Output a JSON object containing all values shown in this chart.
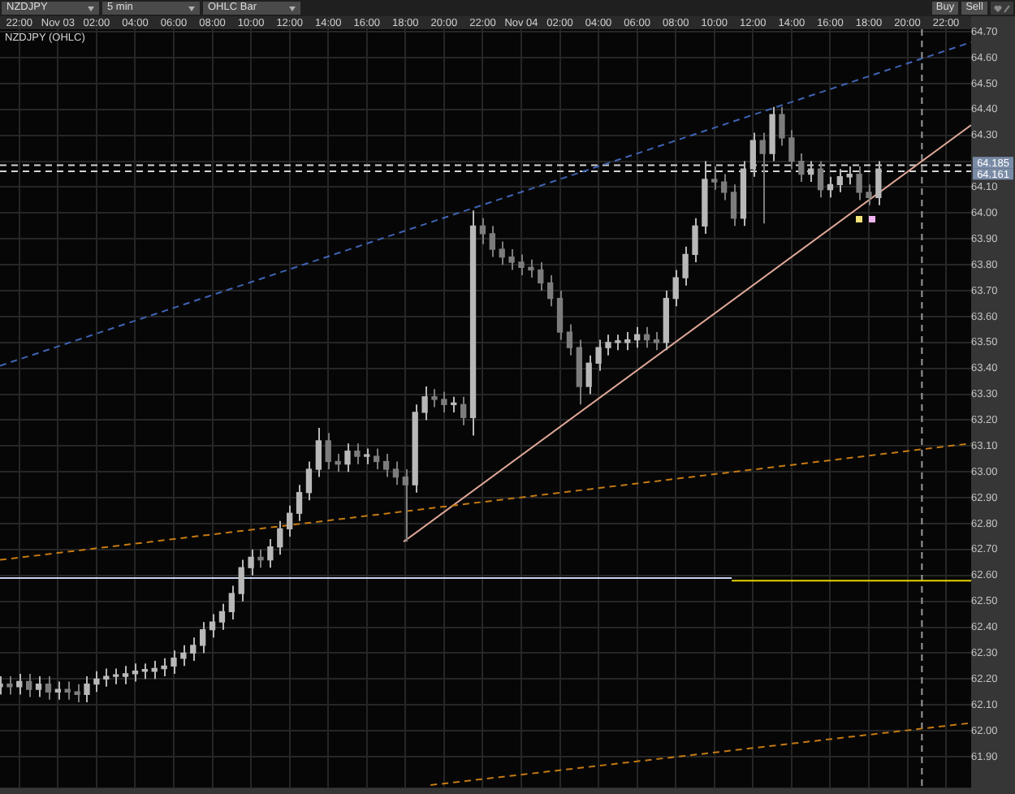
{
  "chart_data": {
    "type": "candlestick",
    "title": "NZDJPY (OHLC)",
    "annotations": [
      "NZDJPY",
      "5 min",
      "OHLC Bar",
      "Buy",
      "Sell"
    ],
    "x": [
      "--11-02T21:00",
      "--11-02T21:30",
      "--11-02T22:00",
      "--11-02T22:30",
      "--11-02T23:00",
      "--11-02T23:30",
      "--11-03T00:00",
      "--11-03T00:30",
      "--11-03T01:00",
      "--11-03T01:30",
      "--11-03T02:00",
      "--11-03T02:30",
      "--11-03T03:00",
      "--11-03T03:30",
      "--11-03T04:00",
      "--11-03T04:30",
      "--11-03T05:00",
      "--11-03T05:30",
      "--11-03T06:00",
      "--11-03T06:30",
      "--11-03T07:00",
      "--11-03T07:30",
      "--11-03T08:00",
      "--11-03T08:30",
      "--11-03T09:00",
      "--11-03T09:30",
      "--11-03T10:00",
      "--11-03T10:30",
      "--11-03T11:00",
      "--11-03T11:30",
      "--11-03T12:00",
      "--11-03T12:30",
      "--11-03T13:00",
      "--11-03T13:30",
      "--11-03T14:00",
      "--11-03T14:30",
      "--11-03T15:00",
      "--11-03T15:30",
      "--11-03T16:00",
      "--11-03T16:30",
      "--11-03T17:00",
      "--11-03T17:30",
      "--11-03T18:00",
      "--11-03T18:30",
      "--11-03T19:00",
      "--11-03T19:30",
      "--11-03T20:00",
      "--11-03T20:30",
      "--11-03T21:00",
      "--11-03T21:30",
      "--11-03T22:00",
      "--11-03T22:30",
      "--11-03T23:00",
      "--11-03T23:30",
      "--11-04T00:00",
      "--11-04T00:30",
      "--11-04T01:00",
      "--11-04T01:30",
      "--11-04T02:00",
      "--11-04T02:30",
      "--11-04T03:00",
      "--11-04T03:30",
      "--11-04T04:00",
      "--11-04T04:30",
      "--11-04T05:00",
      "--11-04T05:30",
      "--11-04T06:00",
      "--11-04T06:30",
      "--11-04T07:00",
      "--11-04T07:30",
      "--11-04T08:00",
      "--11-04T08:30",
      "--11-04T09:00",
      "--11-04T09:30",
      "--11-04T10:00",
      "--11-04T10:30",
      "--11-04T11:00",
      "--11-04T11:30",
      "--11-04T12:00",
      "--11-04T12:30",
      "--11-04T13:00",
      "--11-04T13:30",
      "--11-04T14:00",
      "--11-04T14:30",
      "--11-04T15:00",
      "--11-04T15:30",
      "--11-04T16:00",
      "--11-04T16:30",
      "--11-04T17:00",
      "--11-04T17:30",
      "--11-04T18:00",
      "--11-04T18:30"
    ],
    "ohlc": [
      [
        62.17,
        62.21,
        62.14,
        62.18
      ],
      [
        62.18,
        62.21,
        62.14,
        62.17
      ],
      [
        62.17,
        62.22,
        62.14,
        62.19
      ],
      [
        62.19,
        62.22,
        62.13,
        62.16
      ],
      [
        62.16,
        62.21,
        62.13,
        62.18
      ],
      [
        62.18,
        62.21,
        62.12,
        62.15
      ],
      [
        62.15,
        62.19,
        62.12,
        62.16
      ],
      [
        62.16,
        62.19,
        62.12,
        62.15
      ],
      [
        62.15,
        62.18,
        62.11,
        62.14
      ],
      [
        62.14,
        62.21,
        62.11,
        62.18
      ],
      [
        62.18,
        62.23,
        62.15,
        62.2
      ],
      [
        62.2,
        62.24,
        62.17,
        62.21
      ],
      [
        62.21,
        62.24,
        62.18,
        62.21
      ],
      [
        62.21,
        62.25,
        62.18,
        62.22
      ],
      [
        62.22,
        62.26,
        62.19,
        62.23
      ],
      [
        62.23,
        62.26,
        62.2,
        62.23
      ],
      [
        62.23,
        62.27,
        62.2,
        62.24
      ],
      [
        62.24,
        62.28,
        62.21,
        62.25
      ],
      [
        62.25,
        62.31,
        62.22,
        62.28
      ],
      [
        62.28,
        62.33,
        62.25,
        62.3
      ],
      [
        62.3,
        62.36,
        62.27,
        62.33
      ],
      [
        62.33,
        62.42,
        62.3,
        62.39
      ],
      [
        62.39,
        62.45,
        62.36,
        62.42
      ],
      [
        62.42,
        62.49,
        62.39,
        62.46
      ],
      [
        62.46,
        62.56,
        62.43,
        62.53
      ],
      [
        62.53,
        62.66,
        62.5,
        62.63
      ],
      [
        62.63,
        62.7,
        62.6,
        62.67
      ],
      [
        62.67,
        62.7,
        62.63,
        62.66
      ],
      [
        62.66,
        62.74,
        62.63,
        62.71
      ],
      [
        62.71,
        62.81,
        62.68,
        62.78
      ],
      [
        62.78,
        62.87,
        62.75,
        62.84
      ],
      [
        62.84,
        62.95,
        62.81,
        62.92
      ],
      [
        62.92,
        63.04,
        62.89,
        63.01
      ],
      [
        63.01,
        63.17,
        62.98,
        63.12
      ],
      [
        63.12,
        63.15,
        63.01,
        63.04
      ],
      [
        63.04,
        63.07,
        63.0,
        63.03
      ],
      [
        63.03,
        63.11,
        63.0,
        63.08
      ],
      [
        63.08,
        63.11,
        63.03,
        63.06
      ],
      [
        63.06,
        63.09,
        63.03,
        63.06
      ],
      [
        63.06,
        63.09,
        63.01,
        63.04
      ],
      [
        63.04,
        63.07,
        62.98,
        63.01
      ],
      [
        63.01,
        63.04,
        62.95,
        62.98
      ],
      [
        62.98,
        63.01,
        62.73,
        62.95
      ],
      [
        62.95,
        63.26,
        62.92,
        63.23
      ],
      [
        63.23,
        63.33,
        63.2,
        63.29
      ],
      [
        63.29,
        63.32,
        63.25,
        63.28
      ],
      [
        63.28,
        63.31,
        63.23,
        63.26
      ],
      [
        63.26,
        63.29,
        63.23,
        63.26
      ],
      [
        63.26,
        63.29,
        63.18,
        63.21
      ],
      [
        63.21,
        64.01,
        63.14,
        63.95
      ],
      [
        63.95,
        63.98,
        63.88,
        63.92
      ],
      [
        63.92,
        63.95,
        63.83,
        63.86
      ],
      [
        63.86,
        63.89,
        63.8,
        63.83
      ],
      [
        63.83,
        63.86,
        63.78,
        63.81
      ],
      [
        63.81,
        63.84,
        63.76,
        63.79
      ],
      [
        63.79,
        63.82,
        63.75,
        63.78
      ],
      [
        63.78,
        63.81,
        63.7,
        63.73
      ],
      [
        63.73,
        63.76,
        63.64,
        63.67
      ],
      [
        63.67,
        63.7,
        63.51,
        63.54
      ],
      [
        63.54,
        63.57,
        63.45,
        63.48
      ],
      [
        63.48,
        63.51,
        63.26,
        63.33
      ],
      [
        63.33,
        63.45,
        63.3,
        63.42
      ],
      [
        63.42,
        63.51,
        63.39,
        63.48
      ],
      [
        63.48,
        63.53,
        63.45,
        63.5
      ],
      [
        63.5,
        63.53,
        63.47,
        63.5
      ],
      [
        63.5,
        63.54,
        63.47,
        63.51
      ],
      [
        63.51,
        63.56,
        63.48,
        63.53
      ],
      [
        63.53,
        63.56,
        63.48,
        63.51
      ],
      [
        63.51,
        63.54,
        63.47,
        63.5
      ],
      [
        63.5,
        63.7,
        63.47,
        63.67
      ],
      [
        63.67,
        63.78,
        63.64,
        63.75
      ],
      [
        63.75,
        63.87,
        63.72,
        63.84
      ],
      [
        63.84,
        63.98,
        63.81,
        63.95
      ],
      [
        63.95,
        64.2,
        63.92,
        64.13
      ],
      [
        64.13,
        64.18,
        64.09,
        64.12
      ],
      [
        64.12,
        64.15,
        64.05,
        64.08
      ],
      [
        64.08,
        64.11,
        63.95,
        63.98
      ],
      [
        63.98,
        64.2,
        63.95,
        64.17
      ],
      [
        64.17,
        64.31,
        64.14,
        64.28
      ],
      [
        64.28,
        64.31,
        63.96,
        64.23
      ],
      [
        64.23,
        64.41,
        64.2,
        64.38
      ],
      [
        64.38,
        64.41,
        64.26,
        64.29
      ],
      [
        64.29,
        64.32,
        64.17,
        64.2
      ],
      [
        64.2,
        64.23,
        64.12,
        64.15
      ],
      [
        64.15,
        64.2,
        64.12,
        64.17
      ],
      [
        64.17,
        64.2,
        64.06,
        64.09
      ],
      [
        64.09,
        64.14,
        64.06,
        64.11
      ],
      [
        64.11,
        64.17,
        64.08,
        64.14
      ],
      [
        64.14,
        64.18,
        64.11,
        64.15
      ],
      [
        64.15,
        64.18,
        64.05,
        64.08
      ],
      [
        64.08,
        64.11,
        64.03,
        64.06
      ],
      [
        64.06,
        64.2,
        64.03,
        64.17
      ]
    ],
    "colors": [
      "#b8b8b8",
      "#7c7c7c",
      "#b8b8b8",
      "#7c7c7c",
      "#b8b8b8",
      "#7c7c7c",
      "#b8b8b8",
      "#7c7c7c",
      "#7c7c7c",
      "#b8b8b8",
      "#b8b8b8",
      "#b8b8b8",
      "#b8b8b8",
      "#b8b8b8",
      "#b8b8b8",
      "#b8b8b8",
      "#b8b8b8",
      "#b8b8b8",
      "#b8b8b8",
      "#b8b8b8",
      "#b8b8b8",
      "#b8b8b8",
      "#b8b8b8",
      "#b8b8b8",
      "#b8b8b8",
      "#b8b8b8",
      "#b8b8b8",
      "#7c7c7c",
      "#b8b8b8",
      "#b8b8b8",
      "#b8b8b8",
      "#b8b8b8",
      "#b8b8b8",
      "#b8b8b8",
      "#7c7c7c",
      "#7c7c7c",
      "#b8b8b8",
      "#7c7c7c",
      "#b8b8b8",
      "#7c7c7c",
      "#7c7c7c",
      "#7c7c7c",
      "#7c7c7c",
      "#b8b8b8",
      "#b8b8b8",
      "#7c7c7c",
      "#7c7c7c",
      "#b8b8b8",
      "#7c7c7c",
      "#b8b8b8",
      "#7c7c7c",
      "#7c7c7c",
      "#7c7c7c",
      "#7c7c7c",
      "#7c7c7c",
      "#7c7c7c",
      "#7c7c7c",
      "#7c7c7c",
      "#7c7c7c",
      "#7c7c7c",
      "#7c7c7c",
      "#b8b8b8",
      "#b8b8b8",
      "#b8b8b8",
      "#b8b8b8",
      "#b8b8b8",
      "#b8b8b8",
      "#7c7c7c",
      "#7c7c7c",
      "#b8b8b8",
      "#b8b8b8",
      "#b8b8b8",
      "#b8b8b8",
      "#b8b8b8",
      "#7c7c7c",
      "#7c7c7c",
      "#7c7c7c",
      "#b8b8b8",
      "#b8b8b8",
      "#7c7c7c",
      "#b8b8b8",
      "#7c7c7c",
      "#7c7c7c",
      "#7c7c7c",
      "#b8b8b8",
      "#7c7c7c",
      "#b8b8b8",
      "#b8b8b8",
      "#b8b8b8",
      "#7c7c7c",
      "#7c7c7c",
      "#b8b8b8"
    ],
    "series": [
      {
        "type": "line",
        "x": [
          "--11-02T21:00",
          "--11-04T23:18"
        ],
        "values": [
          63.41,
          64.66
        ],
        "color": "#3f64b4",
        "line_style": "dashed"
      },
      {
        "type": "line",
        "x": [
          "--11-02T21:00",
          "--11-04T23:18"
        ],
        "values": [
          62.66,
          63.11
        ],
        "color": "#c47a12",
        "line_style": "dashed"
      },
      {
        "type": "line",
        "x": [
          "--11-03T19:18",
          "--11-04T23:18"
        ],
        "values": [
          61.79,
          62.03
        ],
        "color": "#c47a12",
        "line_style": "dashed"
      },
      {
        "type": "line",
        "x": [
          "--11-03T17:54",
          "--11-04T23:18"
        ],
        "values": [
          62.73,
          64.34
        ],
        "color": "#e0a898",
        "line_style": "solid"
      },
      {
        "type": "line",
        "x": [
          "--11-02T21:00",
          "--11-04T10:54"
        ],
        "values": [
          62.59,
          62.59
        ],
        "color": "#c8d4ee",
        "line_style": "solid"
      },
      {
        "type": "line",
        "x": [
          "--11-04T10:54",
          "--11-04T23:18"
        ],
        "values": [
          62.58,
          62.58
        ],
        "color": "#e6d200",
        "line_style": "solid"
      }
    ],
    "ref_lines": [
      {
        "axis": "y",
        "value": 64.185,
        "label": "64.185",
        "color": "#d4d4d4",
        "line_style": "dashed"
      },
      {
        "axis": "y",
        "value": 64.161,
        "label": "64.161",
        "color": "#d4d4d4",
        "line_style": "dashed"
      },
      {
        "axis": "x",
        "value": "--11-04T20:45",
        "color": "#9a9a9a",
        "line_style": "dashed"
      }
    ],
    "xlim": [
      "--11-02T21:00",
      "--11-04T23:18"
    ],
    "xticks": [
      {
        "value": "--11-02T22:00",
        "label": "22:00"
      },
      {
        "value": "--11-03T00:00",
        "label": "Nov 03"
      },
      {
        "value": "--11-03T02:00",
        "label": "02:00"
      },
      {
        "value": "--11-03T04:00",
        "label": "04:00"
      },
      {
        "value": "--11-03T06:00",
        "label": "06:00"
      },
      {
        "value": "--11-03T08:00",
        "label": "08:00"
      },
      {
        "value": "--11-03T10:00",
        "label": "10:00"
      },
      {
        "value": "--11-03T12:00",
        "label": "12:00"
      },
      {
        "value": "--11-03T14:00",
        "label": "14:00"
      },
      {
        "value": "--11-03T16:00",
        "label": "16:00"
      },
      {
        "value": "--11-03T18:00",
        "label": "18:00"
      },
      {
        "value": "--11-03T20:00",
        "label": "20:00"
      },
      {
        "value": "--11-03T22:00",
        "label": "22:00"
      },
      {
        "value": "--11-04T00:00",
        "label": "Nov 04"
      },
      {
        "value": "--11-04T02:00",
        "label": "02:00"
      },
      {
        "value": "--11-04T04:00",
        "label": "04:00"
      },
      {
        "value": "--11-04T06:00",
        "label": "06:00"
      },
      {
        "value": "--11-04T08:00",
        "label": "08:00"
      },
      {
        "value": "--11-04T10:00",
        "label": "10:00"
      },
      {
        "value": "--11-04T12:00",
        "label": "12:00"
      },
      {
        "value": "--11-04T14:00",
        "label": "14:00"
      },
      {
        "value": "--11-04T16:00",
        "label": "16:00"
      },
      {
        "value": "--11-04T18:00",
        "label": "18:00"
      },
      {
        "value": "--11-04T20:00",
        "label": "20:00"
      },
      {
        "value": "--11-04T22:00",
        "label": "22:00"
      }
    ],
    "ylim": [
      61.78,
      64.71
    ],
    "yticks": [
      {
        "value": 61.9,
        "label": "61.90"
      },
      {
        "value": 62.0,
        "label": "62.00"
      },
      {
        "value": 62.1,
        "label": "62.10"
      },
      {
        "value": 62.2,
        "label": "62.20"
      },
      {
        "value": 62.3,
        "label": "62.30"
      },
      {
        "value": 62.4,
        "label": "62.40"
      },
      {
        "value": 62.5,
        "label": "62.50"
      },
      {
        "value": 62.6,
        "label": "62.60"
      },
      {
        "value": 62.7,
        "label": "62.70"
      },
      {
        "value": 62.8,
        "label": "62.80"
      },
      {
        "value": 62.9,
        "label": "62.90"
      },
      {
        "value": 63.0,
        "label": "63.00"
      },
      {
        "value": 63.1,
        "label": "63.10"
      },
      {
        "value": 63.2,
        "label": "63.20"
      },
      {
        "value": 63.3,
        "label": "63.30"
      },
      {
        "value": 63.4,
        "label": "63.40"
      },
      {
        "value": 63.5,
        "label": "63.50"
      },
      {
        "value": 63.6,
        "label": "63.60"
      },
      {
        "value": 63.7,
        "label": "63.70"
      },
      {
        "value": 63.8,
        "label": "63.80"
      },
      {
        "value": 63.9,
        "label": "63.90"
      },
      {
        "value": 64.0,
        "label": "64.00"
      },
      {
        "value": 64.1,
        "label": "64.10"
      },
      {
        "value": 64.2,
        "label": null
      },
      {
        "value": 64.3,
        "label": "64.30"
      },
      {
        "value": 64.4,
        "label": "64.40"
      },
      {
        "value": 64.5,
        "label": "64.50"
      },
      {
        "value": 64.6,
        "label": "64.60"
      },
      {
        "value": 64.7,
        "label": "64.70"
      }
    ],
    "grid": true
  }
}
